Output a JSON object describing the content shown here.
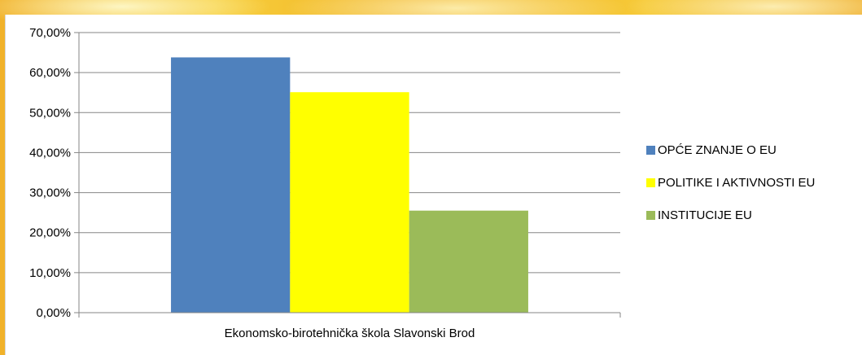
{
  "chart_data": {
    "type": "bar",
    "categories": [
      "Ekonomsko-birotehnička škola Slavonski Brod"
    ],
    "series": [
      {
        "name": "OPĆE ZNANJE O EU",
        "values": [
          63.8
        ],
        "color": "#4f81bd"
      },
      {
        "name": "POLITIKE I AKTIVNOSTI EU",
        "values": [
          55.1
        ],
        "color": "#ffff00"
      },
      {
        "name": "INSTITUCIJE EU",
        "values": [
          25.5
        ],
        "color": "#9bbb59"
      }
    ],
    "y_ticks": [
      "0,00%",
      "10,00%",
      "20,00%",
      "30,00%",
      "40,00%",
      "50,00%",
      "60,00%",
      "70,00%"
    ],
    "ylim": [
      0,
      70
    ],
    "grid": true,
    "legend_position": "right",
    "title": "",
    "xlabel": "",
    "ylabel": ""
  }
}
